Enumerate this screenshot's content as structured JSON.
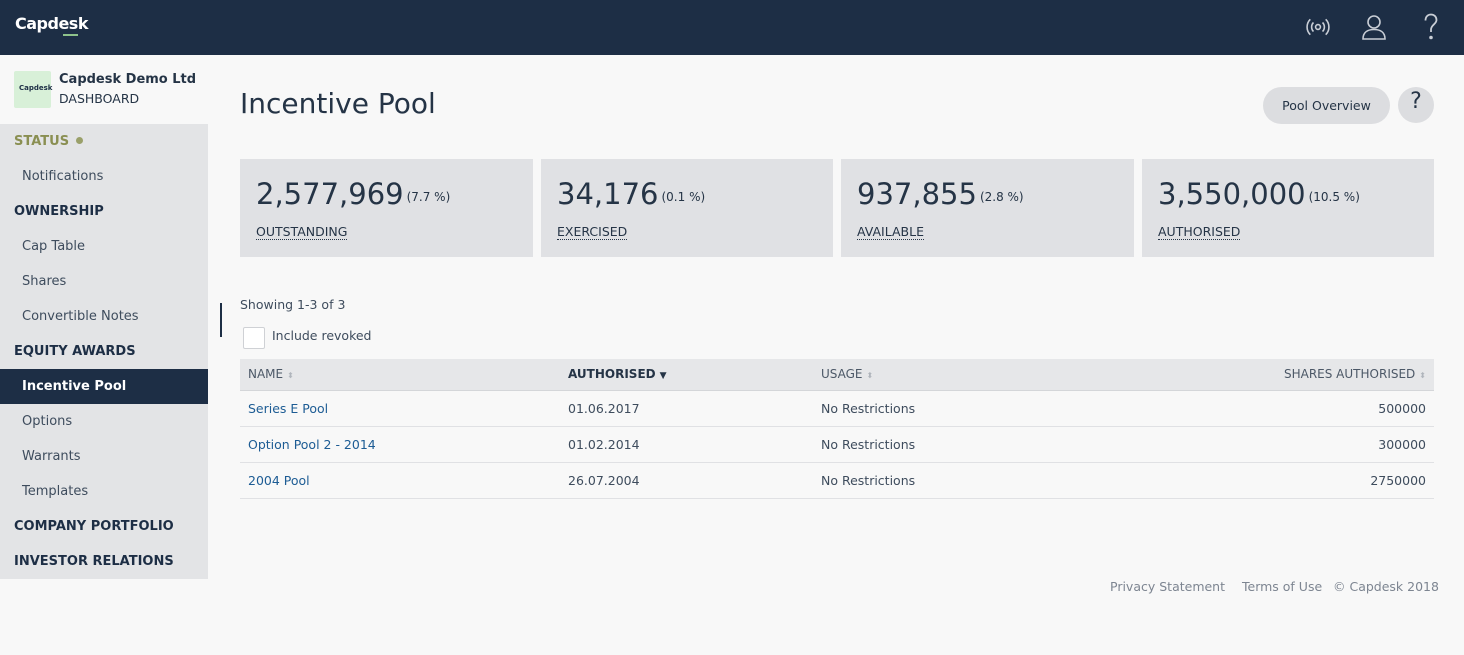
{
  "app": {
    "brand": "Capdesk"
  },
  "header_icons": [
    "broadcast-icon",
    "user-icon",
    "help-icon"
  ],
  "company": {
    "logo_text": "Capdesk",
    "name": "Capdesk Demo Ltd (...",
    "subtitle": "DASHBOARD"
  },
  "sidebar": {
    "status": "STATUS",
    "notifications": "Notifications",
    "ownership": "OWNERSHIP",
    "cap_table": "Cap Table",
    "shares": "Shares",
    "convertible_notes": "Convertible Notes",
    "equity_awards": "EQUITY AWARDS",
    "incentive_pool": "Incentive Pool",
    "options": "Options",
    "warrants": "Warrants",
    "templates": "Templates",
    "company_portfolio": "COMPANY PORTFOLIO",
    "investor_relations": "INVESTOR RELATIONS"
  },
  "page": {
    "title": "Incentive Pool",
    "overview_button": "Pool Overview",
    "help_button": "?"
  },
  "stats": [
    {
      "value": "2,577,969",
      "pct": "(7.7 %)",
      "label": "OUTSTANDING"
    },
    {
      "value": "34,176",
      "pct": "(0.1 %)",
      "label": "EXERCISED"
    },
    {
      "value": "937,855",
      "pct": "(2.8 %)",
      "label": "AVAILABLE"
    },
    {
      "value": "3,550,000",
      "pct": "(10.5 %)",
      "label": "AUTHORISED"
    }
  ],
  "list": {
    "showing": "Showing 1-3 of 3",
    "include_revoked": "Include revoked",
    "include_revoked_checked": false
  },
  "table": {
    "columns": [
      "NAME",
      "AUTHORISED",
      "USAGE",
      "SHARES AUTHORISED"
    ],
    "sorted_column": "AUTHORISED",
    "rows": [
      {
        "name": "Series E Pool",
        "authorised": "01.06.2017",
        "usage": "No Restrictions",
        "shares": "500000"
      },
      {
        "name": "Option Pool 2 - 2014",
        "authorised": "01.02.2014",
        "usage": "No Restrictions",
        "shares": "300000"
      },
      {
        "name": "2004 Pool",
        "authorised": "26.07.2004",
        "usage": "No Restrictions",
        "shares": "2750000"
      }
    ]
  },
  "footer": {
    "privacy": "Privacy Statement",
    "terms": "Terms of Use",
    "copyright": "© Capdesk 2018"
  },
  "colors": {
    "navy": "#1d2e45",
    "link": "#1d5c94",
    "status": "#8a8f52"
  }
}
